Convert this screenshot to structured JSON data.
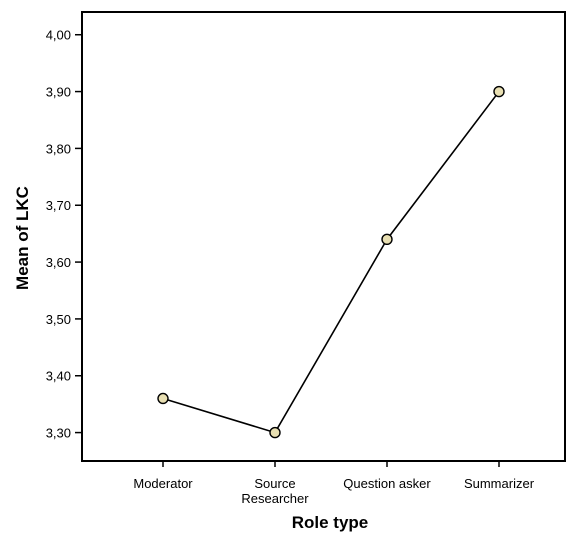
{
  "chart_data": {
    "type": "line",
    "title": "",
    "xlabel": "Role type",
    "ylabel": "Mean of LKC",
    "categories": [
      [
        "Moderator"
      ],
      [
        "Source",
        "Researcher"
      ],
      [
        "Question asker"
      ],
      [
        "Summarizer"
      ]
    ],
    "series": [
      {
        "values": [
          3.36,
          3.3,
          3.64,
          3.9
        ]
      }
    ],
    "ylim": [
      3.25,
      4.04
    ],
    "yticks": [
      3.3,
      3.4,
      3.5,
      3.6,
      3.7,
      3.8,
      3.9,
      4.0
    ],
    "ytick_labels": [
      "3,30",
      "3,40",
      "3,50",
      "3,60",
      "3,70",
      "3,80",
      "3,90",
      "4,00"
    ],
    "grid": false,
    "legend": "none",
    "colors": {
      "line": "#000000",
      "marker_fill": "#e8dfb2",
      "marker_edge": "#000000",
      "axis": "#000000"
    }
  }
}
